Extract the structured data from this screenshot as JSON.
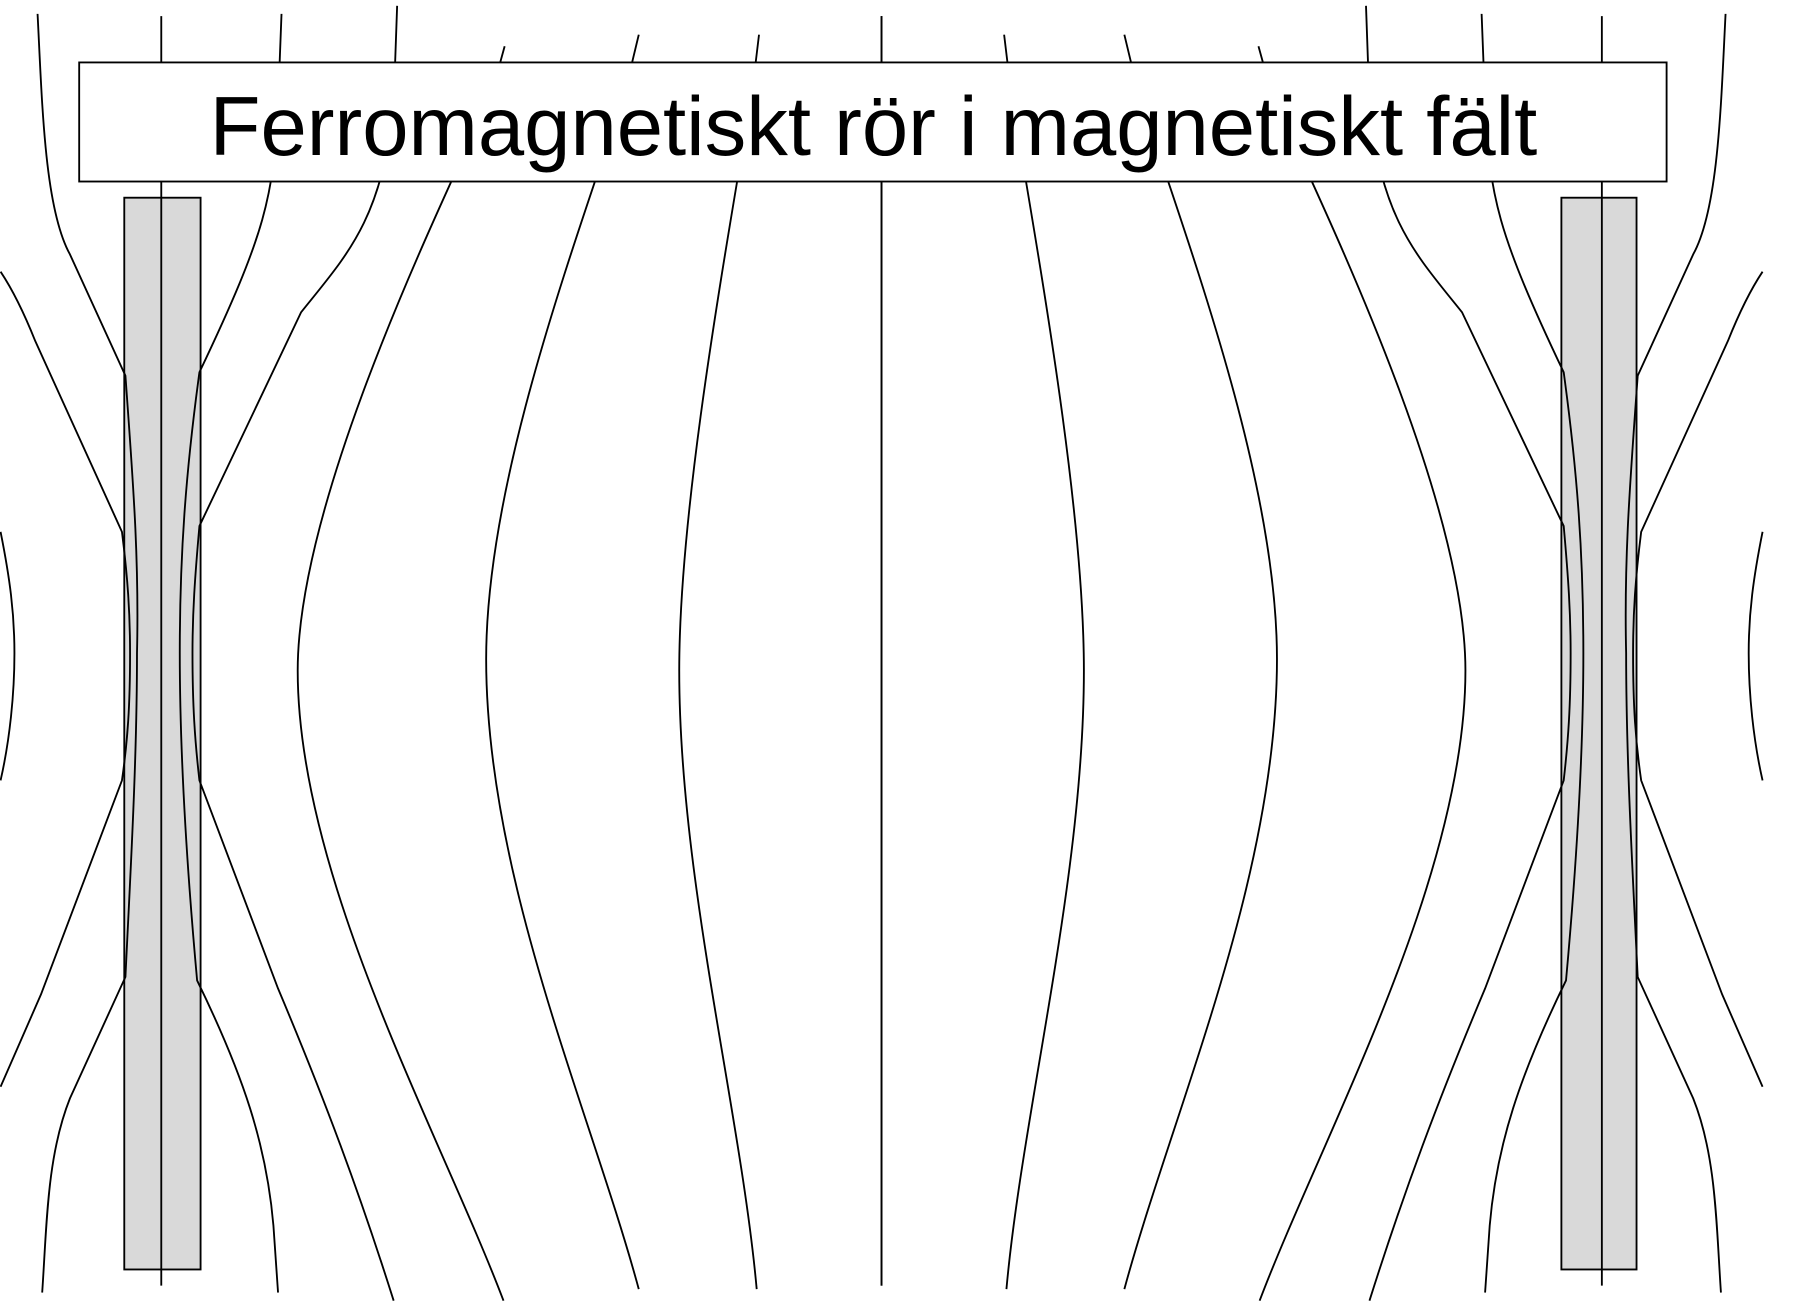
{
  "title": "Ferromagnetiskt rör i magnetiskt fält"
}
